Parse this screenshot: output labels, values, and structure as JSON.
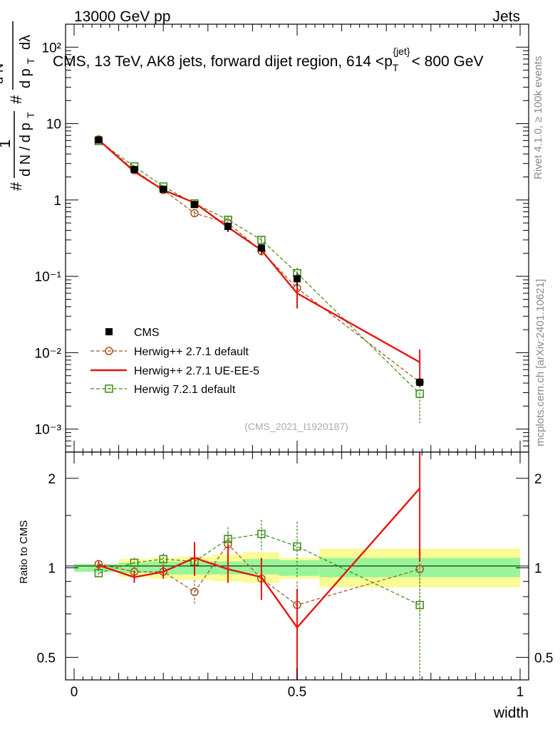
{
  "header": {
    "left": "13000 GeV pp",
    "right": "Jets",
    "title": "CMS, 13 TeV, AK8 jets, forward dijet region, 614 <p",
    "title_sub": "T",
    "title_sup": "{jet}",
    "title_end": "< 800 GeV"
  },
  "side_labels": {
    "rivet": "Rivet 4.1.0, ≥ 100k events",
    "mcplots": "mcplots.cern.ch [arXiv:2401.10621]"
  },
  "watermark": "(CMS_2021_I1920187)",
  "y_axis": {
    "hash1": "#",
    "one": "1",
    "hash2": "#",
    "dN": "d N / d p",
    "dN_sub": "T",
    "d2N": "d²N",
    "dpt": "d p",
    "dpt_sub": "T",
    "dlambda": "dλ"
  },
  "ratio_ylabel": "Ratio to CMS",
  "xlabel": "width",
  "colors": {
    "cms": "#000000",
    "default": "#a0521e",
    "ueee5": "#e8140d",
    "h721": "#3a8a12",
    "band_inner": "#98f598",
    "band_outer": "#fbfb96"
  },
  "legend": [
    {
      "label": "CMS",
      "key": "cms"
    },
    {
      "label": "Herwig++ 2.7.1 default",
      "key": "default"
    },
    {
      "label": "Herwig++ 2.7.1 UE-EE-5",
      "key": "ueee5"
    },
    {
      "label": "Herwig 7.2.1 default",
      "key": "h721"
    }
  ],
  "chart_data": {
    "type": "line",
    "x": [
      0.055,
      0.135,
      0.2,
      0.27,
      0.345,
      0.42,
      0.5,
      0.775
    ],
    "bin_edges": [
      0.0,
      0.1,
      0.17,
      0.23,
      0.31,
      0.38,
      0.46,
      0.55,
      1.0
    ],
    "xlim": [
      0,
      1
    ],
    "x_ticks": [
      "0",
      "0.5",
      "1"
    ],
    "main": {
      "yscale": "log",
      "ylim": [
        0.0005,
        200
      ],
      "y_ticks": [
        "10⁻³",
        "10⁻²",
        "10⁻¹",
        "1",
        "10",
        "10²"
      ],
      "series": [
        {
          "name": "CMS",
          "key": "cms",
          "values": [
            6.1,
            2.5,
            1.38,
            0.87,
            0.45,
            0.235,
            0.093,
            0.0041
          ],
          "err_up": [
            0.2,
            0.1,
            0.06,
            0.06,
            0.06,
            0.03,
            0.02,
            0.0005
          ],
          "err_dn": [
            0.2,
            0.1,
            0.06,
            0.06,
            0.06,
            0.03,
            0.02,
            0.0005
          ]
        },
        {
          "name": "Herwig++ 2.7.1 default",
          "key": "default",
          "values": [
            6.2,
            2.45,
            1.35,
            0.67,
            0.5,
            0.215,
            0.07,
            0.0041
          ],
          "err_up": [
            0.15,
            0.08,
            0.06,
            0.05,
            0.06,
            0.03,
            0.02,
            0.0005
          ],
          "err_dn": [
            0.15,
            0.08,
            0.06,
            0.05,
            0.06,
            0.03,
            0.02,
            0.0005
          ]
        },
        {
          "name": "Herwig++ 2.7.1 UE-EE-5",
          "key": "ueee5",
          "values": [
            6.1,
            2.35,
            1.35,
            0.92,
            0.44,
            0.22,
            0.06,
            0.0075
          ],
          "err_up": [
            0.15,
            0.08,
            0.06,
            0.06,
            0.06,
            0.03,
            0.03,
            0.0035
          ],
          "err_dn": [
            0.15,
            0.08,
            0.06,
            0.06,
            0.06,
            0.03,
            0.022,
            0.0035
          ]
        },
        {
          "name": "Herwig 7.2.1 default",
          "key": "h721",
          "values": [
            5.9,
            2.75,
            1.5,
            0.9,
            0.55,
            0.3,
            0.11,
            0.0029
          ],
          "err_up": [
            0.15,
            0.08,
            0.06,
            0.06,
            0.06,
            0.03,
            0.02,
            0.0008
          ],
          "err_dn": [
            0.15,
            0.08,
            0.06,
            0.06,
            0.06,
            0.03,
            0.02,
            0.0017
          ]
        }
      ]
    },
    "ratio": {
      "yscale": "log",
      "ylim": [
        0.42,
        2.45
      ],
      "y_ticks": [
        "0.5",
        "1",
        "2"
      ],
      "band_inner": [
        [
          0.97,
          1.03
        ],
        [
          0.96,
          1.04
        ],
        [
          0.95,
          1.05
        ],
        [
          0.95,
          1.05
        ],
        [
          0.95,
          1.05
        ],
        [
          0.95,
          1.07
        ],
        [
          0.94,
          1.06
        ],
        [
          0.93,
          1.08
        ]
      ],
      "band_outer": [
        [
          0.98,
          1.02
        ],
        [
          0.93,
          1.07
        ],
        [
          0.92,
          1.08
        ],
        [
          0.91,
          1.09
        ],
        [
          0.9,
          1.11
        ],
        [
          0.89,
          1.13
        ],
        [
          0.92,
          1.08
        ],
        [
          0.86,
          1.16
        ]
      ],
      "series": [
        {
          "name": "Herwig++ 2.7.1 default",
          "key": "default",
          "values": [
            1.03,
            0.97,
            0.97,
            0.83,
            1.2,
            0.92,
            0.75,
            0.99
          ],
          "err_up": [
            0.03,
            0.04,
            0.05,
            0.08,
            0.12,
            0.14,
            0.15,
            0.3
          ],
          "err_dn": [
            0.03,
            0.04,
            0.05,
            0.08,
            0.12,
            0.14,
            0.15,
            0.3
          ]
        },
        {
          "name": "Herwig++ 2.7.1 UE-EE-5",
          "key": "ueee5",
          "values": [
            1.02,
            0.93,
            0.97,
            1.08,
            0.99,
            0.93,
            0.63,
            1.85
          ],
          "err_up": [
            0.03,
            0.04,
            0.05,
            0.14,
            0.2,
            0.15,
            0.22,
            0.8
          ],
          "err_dn": [
            0.03,
            0.04,
            0.05,
            0.14,
            0.1,
            0.15,
            0.22,
            0.8
          ]
        },
        {
          "name": "Herwig 7.2.1 default",
          "key": "h721",
          "values": [
            0.96,
            1.04,
            1.07,
            1.05,
            1.25,
            1.3,
            1.18,
            0.75
          ],
          "err_up": [
            0.03,
            0.04,
            0.05,
            0.08,
            0.12,
            0.15,
            0.25,
            0.2
          ],
          "err_dn": [
            0.03,
            0.04,
            0.05,
            0.08,
            0.12,
            0.15,
            0.25,
            0.4
          ]
        }
      ]
    }
  }
}
